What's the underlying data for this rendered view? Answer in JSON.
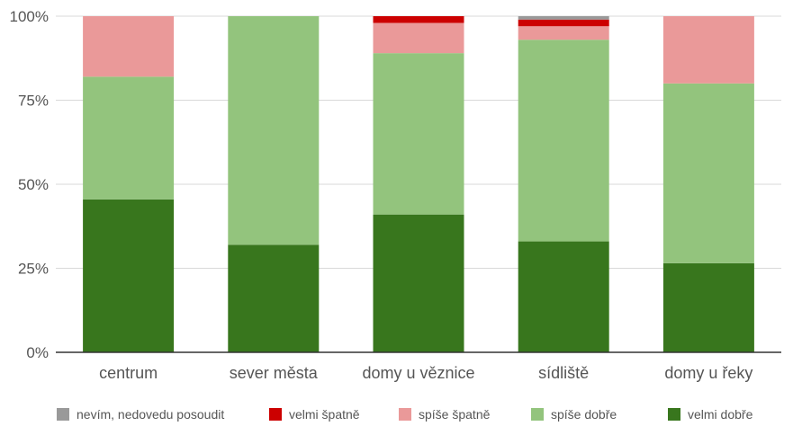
{
  "chart_data": {
    "type": "bar",
    "stacked": true,
    "percent": true,
    "categories": [
      "centrum",
      "sever města",
      "domy u věznice",
      "sídliště",
      "domy u řeky"
    ],
    "y_ticks": [
      "0%",
      "25%",
      "50%",
      "75%",
      "100%"
    ],
    "ylim": [
      0,
      100
    ],
    "grid": true,
    "legend_position": "bottom",
    "series": [
      {
        "name": "velmi dobře",
        "color": "#38761d",
        "values": [
          45.5,
          32,
          41,
          33,
          26.5
        ]
      },
      {
        "name": "spíše dobře",
        "color": "#93c47d",
        "values": [
          36.5,
          68,
          48,
          60,
          53.5
        ]
      },
      {
        "name": "spíše špatně",
        "color": "#ea9999",
        "values": [
          18,
          0,
          9,
          4,
          20
        ]
      },
      {
        "name": "velmi špatně",
        "color": "#cc0000",
        "values": [
          0,
          0,
          2,
          2,
          0
        ]
      },
      {
        "name": "nevím, nedovedu posoudit",
        "color": "#999999",
        "values": [
          0,
          0,
          0,
          1,
          0
        ]
      }
    ],
    "legend_order": [
      "nevím, nedovedu posoudit",
      "velmi špatně",
      "spíše špatně",
      "spíše dobře",
      "velmi dobře"
    ]
  }
}
